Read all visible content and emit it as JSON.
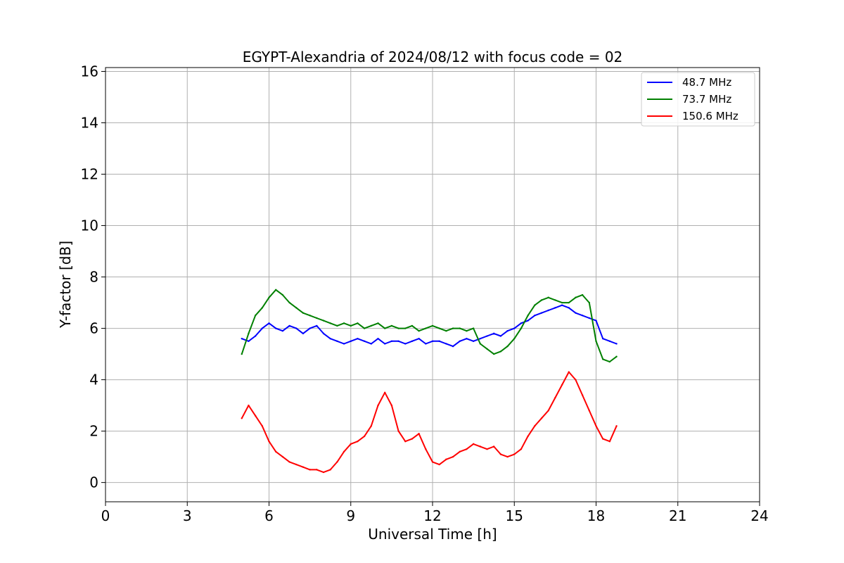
{
  "chart_data": {
    "type": "line",
    "title": "EGYPT-Alexandria of 2024/08/12 with focus code = 02",
    "xlabel": "Universal Time [h]",
    "ylabel": "Y-factor [dB]",
    "xlim": [
      0,
      24
    ],
    "ylim": [
      -0.75,
      16.15
    ],
    "xticks": [
      0,
      3,
      6,
      9,
      12,
      15,
      18,
      21,
      24
    ],
    "yticks": [
      0,
      2,
      4,
      6,
      8,
      10,
      12,
      14,
      16
    ],
    "grid": true,
    "legend_position": "top-right",
    "series": [
      {
        "name": "48.7 MHz",
        "color": "#0000ff",
        "x": [
          5.0,
          5.25,
          5.5,
          5.75,
          6.0,
          6.25,
          6.5,
          6.75,
          7.0,
          7.25,
          7.5,
          7.75,
          8.0,
          8.25,
          8.5,
          8.75,
          9.0,
          9.25,
          9.5,
          9.75,
          10.0,
          10.25,
          10.5,
          10.75,
          11.0,
          11.25,
          11.5,
          11.75,
          12.0,
          12.25,
          12.5,
          12.75,
          13.0,
          13.25,
          13.5,
          13.75,
          14.0,
          14.25,
          14.5,
          14.75,
          15.0,
          15.25,
          15.5,
          15.75,
          16.0,
          16.25,
          16.5,
          16.75,
          17.0,
          17.25,
          17.5,
          17.75,
          18.0,
          18.25,
          18.5,
          18.75
        ],
        "y": [
          5.6,
          5.5,
          5.7,
          6.0,
          6.2,
          6.0,
          5.9,
          6.1,
          6.0,
          5.8,
          6.0,
          6.1,
          5.8,
          5.6,
          5.5,
          5.4,
          5.5,
          5.6,
          5.5,
          5.4,
          5.6,
          5.4,
          5.5,
          5.5,
          5.4,
          5.5,
          5.6,
          5.4,
          5.5,
          5.5,
          5.4,
          5.3,
          5.5,
          5.6,
          5.5,
          5.6,
          5.7,
          5.8,
          5.7,
          5.9,
          6.0,
          6.2,
          6.3,
          6.5,
          6.6,
          6.7,
          6.8,
          6.9,
          6.8,
          6.6,
          6.5,
          6.4,
          6.3,
          5.6,
          5.5,
          5.4
        ]
      },
      {
        "name": "73.7 MHz",
        "color": "#008000",
        "x": [
          5.0,
          5.25,
          5.5,
          5.75,
          6.0,
          6.25,
          6.5,
          6.75,
          7.0,
          7.25,
          7.5,
          7.75,
          8.0,
          8.25,
          8.5,
          8.75,
          9.0,
          9.25,
          9.5,
          9.75,
          10.0,
          10.25,
          10.5,
          10.75,
          11.0,
          11.25,
          11.5,
          11.75,
          12.0,
          12.25,
          12.5,
          12.75,
          13.0,
          13.25,
          13.5,
          13.75,
          14.0,
          14.25,
          14.5,
          14.75,
          15.0,
          15.25,
          15.5,
          15.75,
          16.0,
          16.25,
          16.5,
          16.75,
          17.0,
          17.25,
          17.5,
          17.75,
          18.0,
          18.25,
          18.5,
          18.75
        ],
        "y": [
          5.0,
          5.8,
          6.5,
          6.8,
          7.2,
          7.5,
          7.3,
          7.0,
          6.8,
          6.6,
          6.5,
          6.4,
          6.3,
          6.2,
          6.1,
          6.2,
          6.1,
          6.2,
          6.0,
          6.1,
          6.2,
          6.0,
          6.1,
          6.0,
          6.0,
          6.1,
          5.9,
          6.0,
          6.1,
          6.0,
          5.9,
          6.0,
          6.0,
          5.9,
          6.0,
          5.4,
          5.2,
          5.0,
          5.1,
          5.3,
          5.6,
          6.0,
          6.5,
          6.9,
          7.1,
          7.2,
          7.1,
          7.0,
          7.0,
          7.2,
          7.3,
          7.0,
          5.5,
          4.8,
          4.7,
          4.9
        ]
      },
      {
        "name": "150.6 MHz",
        "color": "#ff0000",
        "x": [
          5.0,
          5.25,
          5.5,
          5.75,
          6.0,
          6.25,
          6.5,
          6.75,
          7.0,
          7.25,
          7.5,
          7.75,
          8.0,
          8.25,
          8.5,
          8.75,
          9.0,
          9.25,
          9.5,
          9.75,
          10.0,
          10.25,
          10.5,
          10.75,
          11.0,
          11.25,
          11.5,
          11.75,
          12.0,
          12.25,
          12.5,
          12.75,
          13.0,
          13.25,
          13.5,
          13.75,
          14.0,
          14.25,
          14.5,
          14.75,
          15.0,
          15.25,
          15.5,
          15.75,
          16.0,
          16.25,
          16.5,
          16.75,
          17.0,
          17.25,
          17.5,
          17.75,
          18.0,
          18.25,
          18.5,
          18.75
        ],
        "y": [
          2.5,
          3.0,
          2.6,
          2.2,
          1.6,
          1.2,
          1.0,
          0.8,
          0.7,
          0.6,
          0.5,
          0.5,
          0.4,
          0.5,
          0.8,
          1.2,
          1.5,
          1.6,
          1.8,
          2.2,
          3.0,
          3.5,
          3.0,
          2.0,
          1.6,
          1.7,
          1.9,
          1.3,
          0.8,
          0.7,
          0.9,
          1.0,
          1.2,
          1.3,
          1.5,
          1.4,
          1.3,
          1.4,
          1.1,
          1.0,
          1.1,
          1.3,
          1.8,
          2.2,
          2.5,
          2.8,
          3.3,
          3.8,
          4.3,
          4.0,
          3.4,
          2.8,
          2.2,
          1.7,
          1.6,
          2.2
        ]
      }
    ]
  }
}
